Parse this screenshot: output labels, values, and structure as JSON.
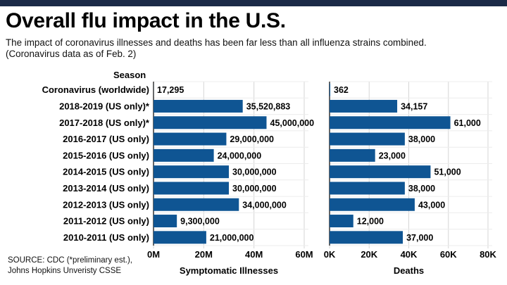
{
  "title": "Overall flu impact in the U.S.",
  "subtitle_line1": "The impact of coronavirus illnesses and deaths has been far less than all influenza strains combined.",
  "subtitle_line2": "(Coronavirus data as of Feb. 2)",
  "source_line1": "SOURCE: CDC  (*preliminary est.),",
  "source_line2": "Johns Hopkins Unveristy CSSE",
  "colors": {
    "bar": "#0f5593",
    "header_bar": "#1b2a47",
    "grid": "#d6d6d6"
  },
  "chart_data": {
    "type": "bar",
    "orientation": "horizontal",
    "category_axis_label": "Season",
    "categories": [
      "Coronavirus (worldwide)",
      "2018-2019 (US only)*",
      "2017-2018 (US only)*",
      "2016-2017 (US only)",
      "2015-2016 (US only)",
      "2014-2015 (US only)",
      "2013-2014 (US only)",
      "2012-2013 (US only)",
      "2011-2012 (US only)",
      "2010-2011 (US only)"
    ],
    "panels": [
      {
        "xlabel": "Symptomatic Illnesses",
        "xlim": [
          0,
          60000000
        ],
        "ticks": [
          0,
          20000000,
          40000000,
          60000000
        ],
        "tick_labels": [
          "0M",
          "20M",
          "40M",
          "60M"
        ],
        "values": [
          17295,
          35520883,
          45000000,
          29000000,
          24000000,
          30000000,
          30000000,
          34000000,
          9300000,
          21000000
        ],
        "value_labels": [
          "17,295",
          "35,520,883",
          "45,000,000",
          "29,000,000",
          "24,000,000",
          "30,000,000",
          "30,000,000",
          "34,000,000",
          "9,300,000",
          "21,000,000"
        ]
      },
      {
        "xlabel": "Deaths",
        "xlim": [
          0,
          80000
        ],
        "ticks": [
          0,
          20000,
          40000,
          60000,
          80000
        ],
        "tick_labels": [
          "0K",
          "20K",
          "40K",
          "60K",
          "80K"
        ],
        "values": [
          362,
          34157,
          61000,
          38000,
          23000,
          51000,
          38000,
          43000,
          12000,
          37000
        ],
        "value_labels": [
          "362",
          "34,157",
          "61,000",
          "38,000",
          "23,000",
          "51,000",
          "38,000",
          "43,000",
          "12,000",
          "37,000"
        ]
      }
    ]
  }
}
